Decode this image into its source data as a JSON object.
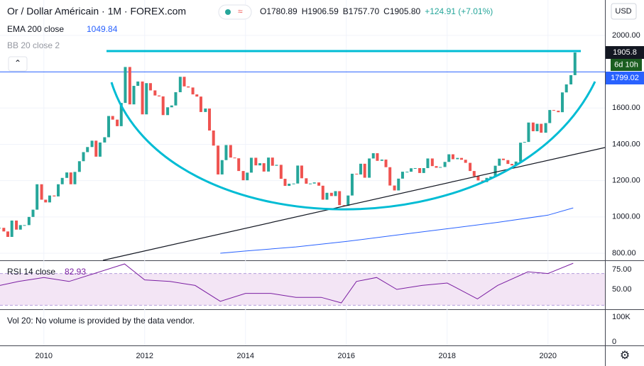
{
  "chart_data": {
    "type": "candlestick",
    "title": "Or / Dollar Américain · 1M · FOREX.com",
    "ohlc_text": [
      "O1780.89",
      "H1906.59",
      "B1757.70",
      "C1905.80",
      "+124.91 (+7.01%)"
    ],
    "currency": "USD",
    "ema_label": "EMA 200 close",
    "ema_value": 1049.84,
    "bb_label": "BB 20 close 2",
    "last_price": 1905.8,
    "countdown": "6d 10h",
    "price_line": 1799.02,
    "x": [
      2009.08,
      2009.17,
      2009.25,
      2009.33,
      2009.42,
      2009.5,
      2009.58,
      2009.67,
      2009.75,
      2009.83,
      2009.92,
      2010.0,
      2010.08,
      2010.17,
      2010.25,
      2010.33,
      2010.42,
      2010.5,
      2010.58,
      2010.67,
      2010.75,
      2010.83,
      2010.92,
      2011.0,
      2011.08,
      2011.17,
      2011.25,
      2011.33,
      2011.42,
      2011.5,
      2011.58,
      2011.67,
      2011.75,
      2011.83,
      2011.92,
      2012.0,
      2012.08,
      2012.17,
      2012.25,
      2012.33,
      2012.42,
      2012.5,
      2012.58,
      2012.67,
      2012.75,
      2012.83,
      2012.92,
      2013.0,
      2013.08,
      2013.17,
      2013.25,
      2013.33,
      2013.42,
      2013.5,
      2013.58,
      2013.67,
      2013.75,
      2013.83,
      2013.92,
      2014.0,
      2014.08,
      2014.17,
      2014.25,
      2014.33,
      2014.42,
      2014.5,
      2014.58,
      2014.67,
      2014.75,
      2014.83,
      2014.92,
      2015.0,
      2015.08,
      2015.17,
      2015.25,
      2015.33,
      2015.42,
      2015.5,
      2015.58,
      2015.67,
      2015.75,
      2015.83,
      2015.92,
      2016.0,
      2016.08,
      2016.17,
      2016.25,
      2016.33,
      2016.42,
      2016.5,
      2016.58,
      2016.67,
      2016.75,
      2016.83,
      2016.92,
      2017.0,
      2017.08,
      2017.17,
      2017.25,
      2017.33,
      2017.42,
      2017.5,
      2017.58,
      2017.67,
      2017.75,
      2017.83,
      2017.92,
      2018.0,
      2018.08,
      2018.17,
      2018.25,
      2018.33,
      2018.42,
      2018.5,
      2018.58,
      2018.67,
      2018.75,
      2018.83,
      2018.92,
      2019.0,
      2019.08,
      2019.17,
      2019.25,
      2019.33,
      2019.42,
      2019.5,
      2019.58,
      2019.67,
      2019.75,
      2019.83,
      2019.92,
      2020.0,
      2020.08,
      2020.17,
      2020.25,
      2020.33,
      2020.42,
      2020.5
    ],
    "closes": [
      940,
      920,
      890,
      980,
      930,
      955,
      955,
      1000,
      1040,
      1180,
      1095,
      1080,
      1118,
      1113,
      1180,
      1215,
      1245,
      1180,
      1248,
      1307,
      1357,
      1385,
      1420,
      1332,
      1410,
      1439,
      1556,
      1536,
      1500,
      1628,
      1826,
      1620,
      1722,
      1746,
      1565,
      1737,
      1697,
      1669,
      1664,
      1561,
      1604,
      1614,
      1687,
      1772,
      1719,
      1713,
      1675,
      1663,
      1578,
      1597,
      1476,
      1393,
      1234,
      1313,
      1396,
      1327,
      1323,
      1253,
      1202,
      1244,
      1326,
      1284,
      1296,
      1250,
      1327,
      1282,
      1287,
      1210,
      1171,
      1183,
      1184,
      1283,
      1213,
      1183,
      1184,
      1190,
      1172,
      1095,
      1133,
      1115,
      1142,
      1065,
      1061,
      1118,
      1238,
      1234,
      1293,
      1216,
      1322,
      1351,
      1309,
      1316,
      1274,
      1173,
      1146,
      1211,
      1249,
      1249,
      1268,
      1269,
      1242,
      1269,
      1322,
      1280,
      1271,
      1275,
      1303,
      1345,
      1318,
      1325,
      1315,
      1298,
      1253,
      1224,
      1201,
      1192,
      1215,
      1222,
      1282,
      1321,
      1313,
      1292,
      1284,
      1305,
      1409,
      1413,
      1520,
      1472,
      1513,
      1464,
      1517,
      1589,
      1585,
      1577,
      1686,
      1730,
      1781,
      1905.8
    ],
    "up_color": "#26a69a",
    "down_color": "#ef5350",
    "ema": {
      "x": [
        2013.5,
        2014,
        2015,
        2016,
        2017,
        2018,
        2019,
        2020,
        2020.5
      ],
      "values": [
        800,
        812,
        835,
        865,
        900,
        935,
        970,
        1010,
        1049.84
      ],
      "color": "#2962ff"
    },
    "xlim": [
      2009.13,
      2021.13
    ],
    "xticks": [
      2010,
      2012,
      2014,
      2016,
      2018,
      2020
    ],
    "ylim": [
      761,
      2195
    ],
    "yticks": [
      {
        "value": 800,
        "label": "800.00"
      },
      {
        "value": 1000,
        "label": "1000.00"
      },
      {
        "value": 1200,
        "label": "1200.00"
      },
      {
        "value": 1400,
        "label": "1400.00"
      },
      {
        "value": 1600,
        "label": "1600.00"
      },
      {
        "value": 2000,
        "label": "2000.00"
      }
    ],
    "rsi": {
      "label": "RSI 14 close",
      "last": 82.93,
      "color": "#7b1fa2",
      "x": [
        2009.13,
        2009.5,
        2010,
        2010.5,
        2011,
        2011.6,
        2012,
        2012.5,
        2013,
        2013.5,
        2014,
        2014.5,
        2015,
        2015.5,
        2015.9,
        2016.2,
        2016.6,
        2017,
        2017.5,
        2018,
        2018.6,
        2019,
        2019.6,
        2020,
        2020.5
      ],
      "values": [
        55,
        60,
        65,
        60,
        70,
        82,
        62,
        60,
        55,
        35,
        45,
        45,
        40,
        40,
        33,
        60,
        65,
        50,
        55,
        58,
        38,
        55,
        72,
        70,
        82.93
      ],
      "ylim": [
        25,
        85.7
      ],
      "band": [
        30,
        70
      ],
      "yticks": [
        {
          "value": 75,
          "label": "75.00"
        },
        {
          "value": 50,
          "label": "50.00"
        }
      ]
    },
    "volume": {
      "text": "Vol 20: No volume is provided by the data vendor.",
      "ticks": [
        "100K",
        "0"
      ]
    }
  }
}
